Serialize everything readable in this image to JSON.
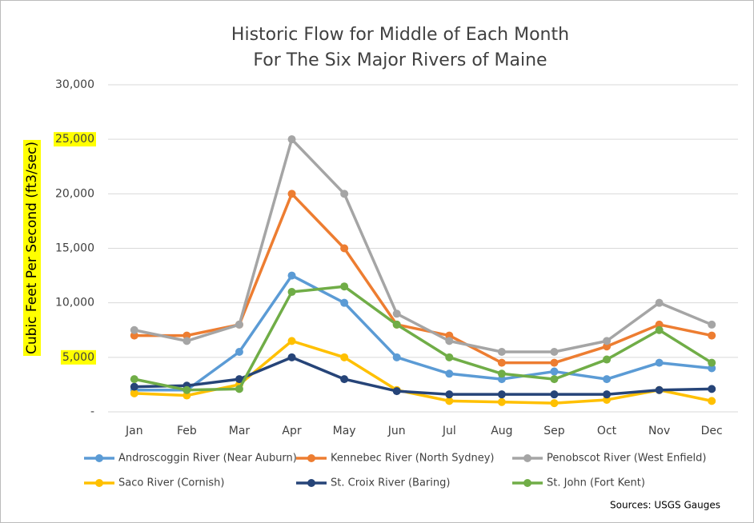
{
  "chart_data": {
    "type": "line",
    "title": [
      "Historic Flow for Middle of Each Month",
      "For The Six Major Rivers of Maine"
    ],
    "y_label": "Cubic Feet Per Second (ft3/sec)",
    "highlight_color": "#ffff00",
    "source": "Sources: USGS Gauges",
    "categories": [
      "Jan",
      "Feb",
      "Mar",
      "Apr",
      "May",
      "Jun",
      "Jul",
      "Aug",
      "Sep",
      "Oct",
      "Nov",
      "Dec"
    ],
    "ylim": [
      0,
      30000
    ],
    "yticks": [
      {
        "value": 0,
        "label": "-"
      },
      {
        "value": 5000,
        "label": "5,000",
        "highlight": true
      },
      {
        "value": 10000,
        "label": "10,000"
      },
      {
        "value": 15000,
        "label": "15,000"
      },
      {
        "value": 20000,
        "label": "20,000"
      },
      {
        "value": 25000,
        "label": "25,000",
        "highlight": true
      },
      {
        "value": 30000,
        "label": "30,000"
      }
    ],
    "grid": true,
    "series": [
      {
        "name": "Androscoggin River (Near Auburn)",
        "color": "#5b9bd5",
        "values": [
          2000,
          2000,
          5500,
          12500,
          10000,
          5000,
          3500,
          3000,
          3700,
          3000,
          4500,
          4000
        ]
      },
      {
        "name": "Kennebec River (North Sydney)",
        "color": "#ed7d31",
        "values": [
          7000,
          7000,
          8000,
          20000,
          15000,
          8000,
          7000,
          4500,
          4500,
          6000,
          8000,
          7000
        ]
      },
      {
        "name": "Penobscot River (West Enfield)",
        "color": "#a5a5a5",
        "values": [
          7500,
          6500,
          8000,
          25000,
          20000,
          9000,
          6500,
          5500,
          5500,
          6500,
          10000,
          8000
        ]
      },
      {
        "name": "Saco River (Cornish)",
        "color": "#ffc000",
        "values": [
          1700,
          1500,
          2500,
          6500,
          5000,
          2000,
          1000,
          900,
          800,
          1100,
          2000,
          1000
        ]
      },
      {
        "name": "St. Croix River (Baring)",
        "color": "#264478",
        "values": [
          2300,
          2400,
          3000,
          5000,
          3000,
          1900,
          1600,
          1600,
          1600,
          1600,
          2000,
          2100
        ]
      },
      {
        "name": "St. John (Fort Kent)",
        "color": "#70ad47",
        "values": [
          3000,
          2000,
          2100,
          11000,
          11500,
          8000,
          5000,
          3500,
          3000,
          4800,
          7500,
          4500
        ]
      }
    ]
  }
}
